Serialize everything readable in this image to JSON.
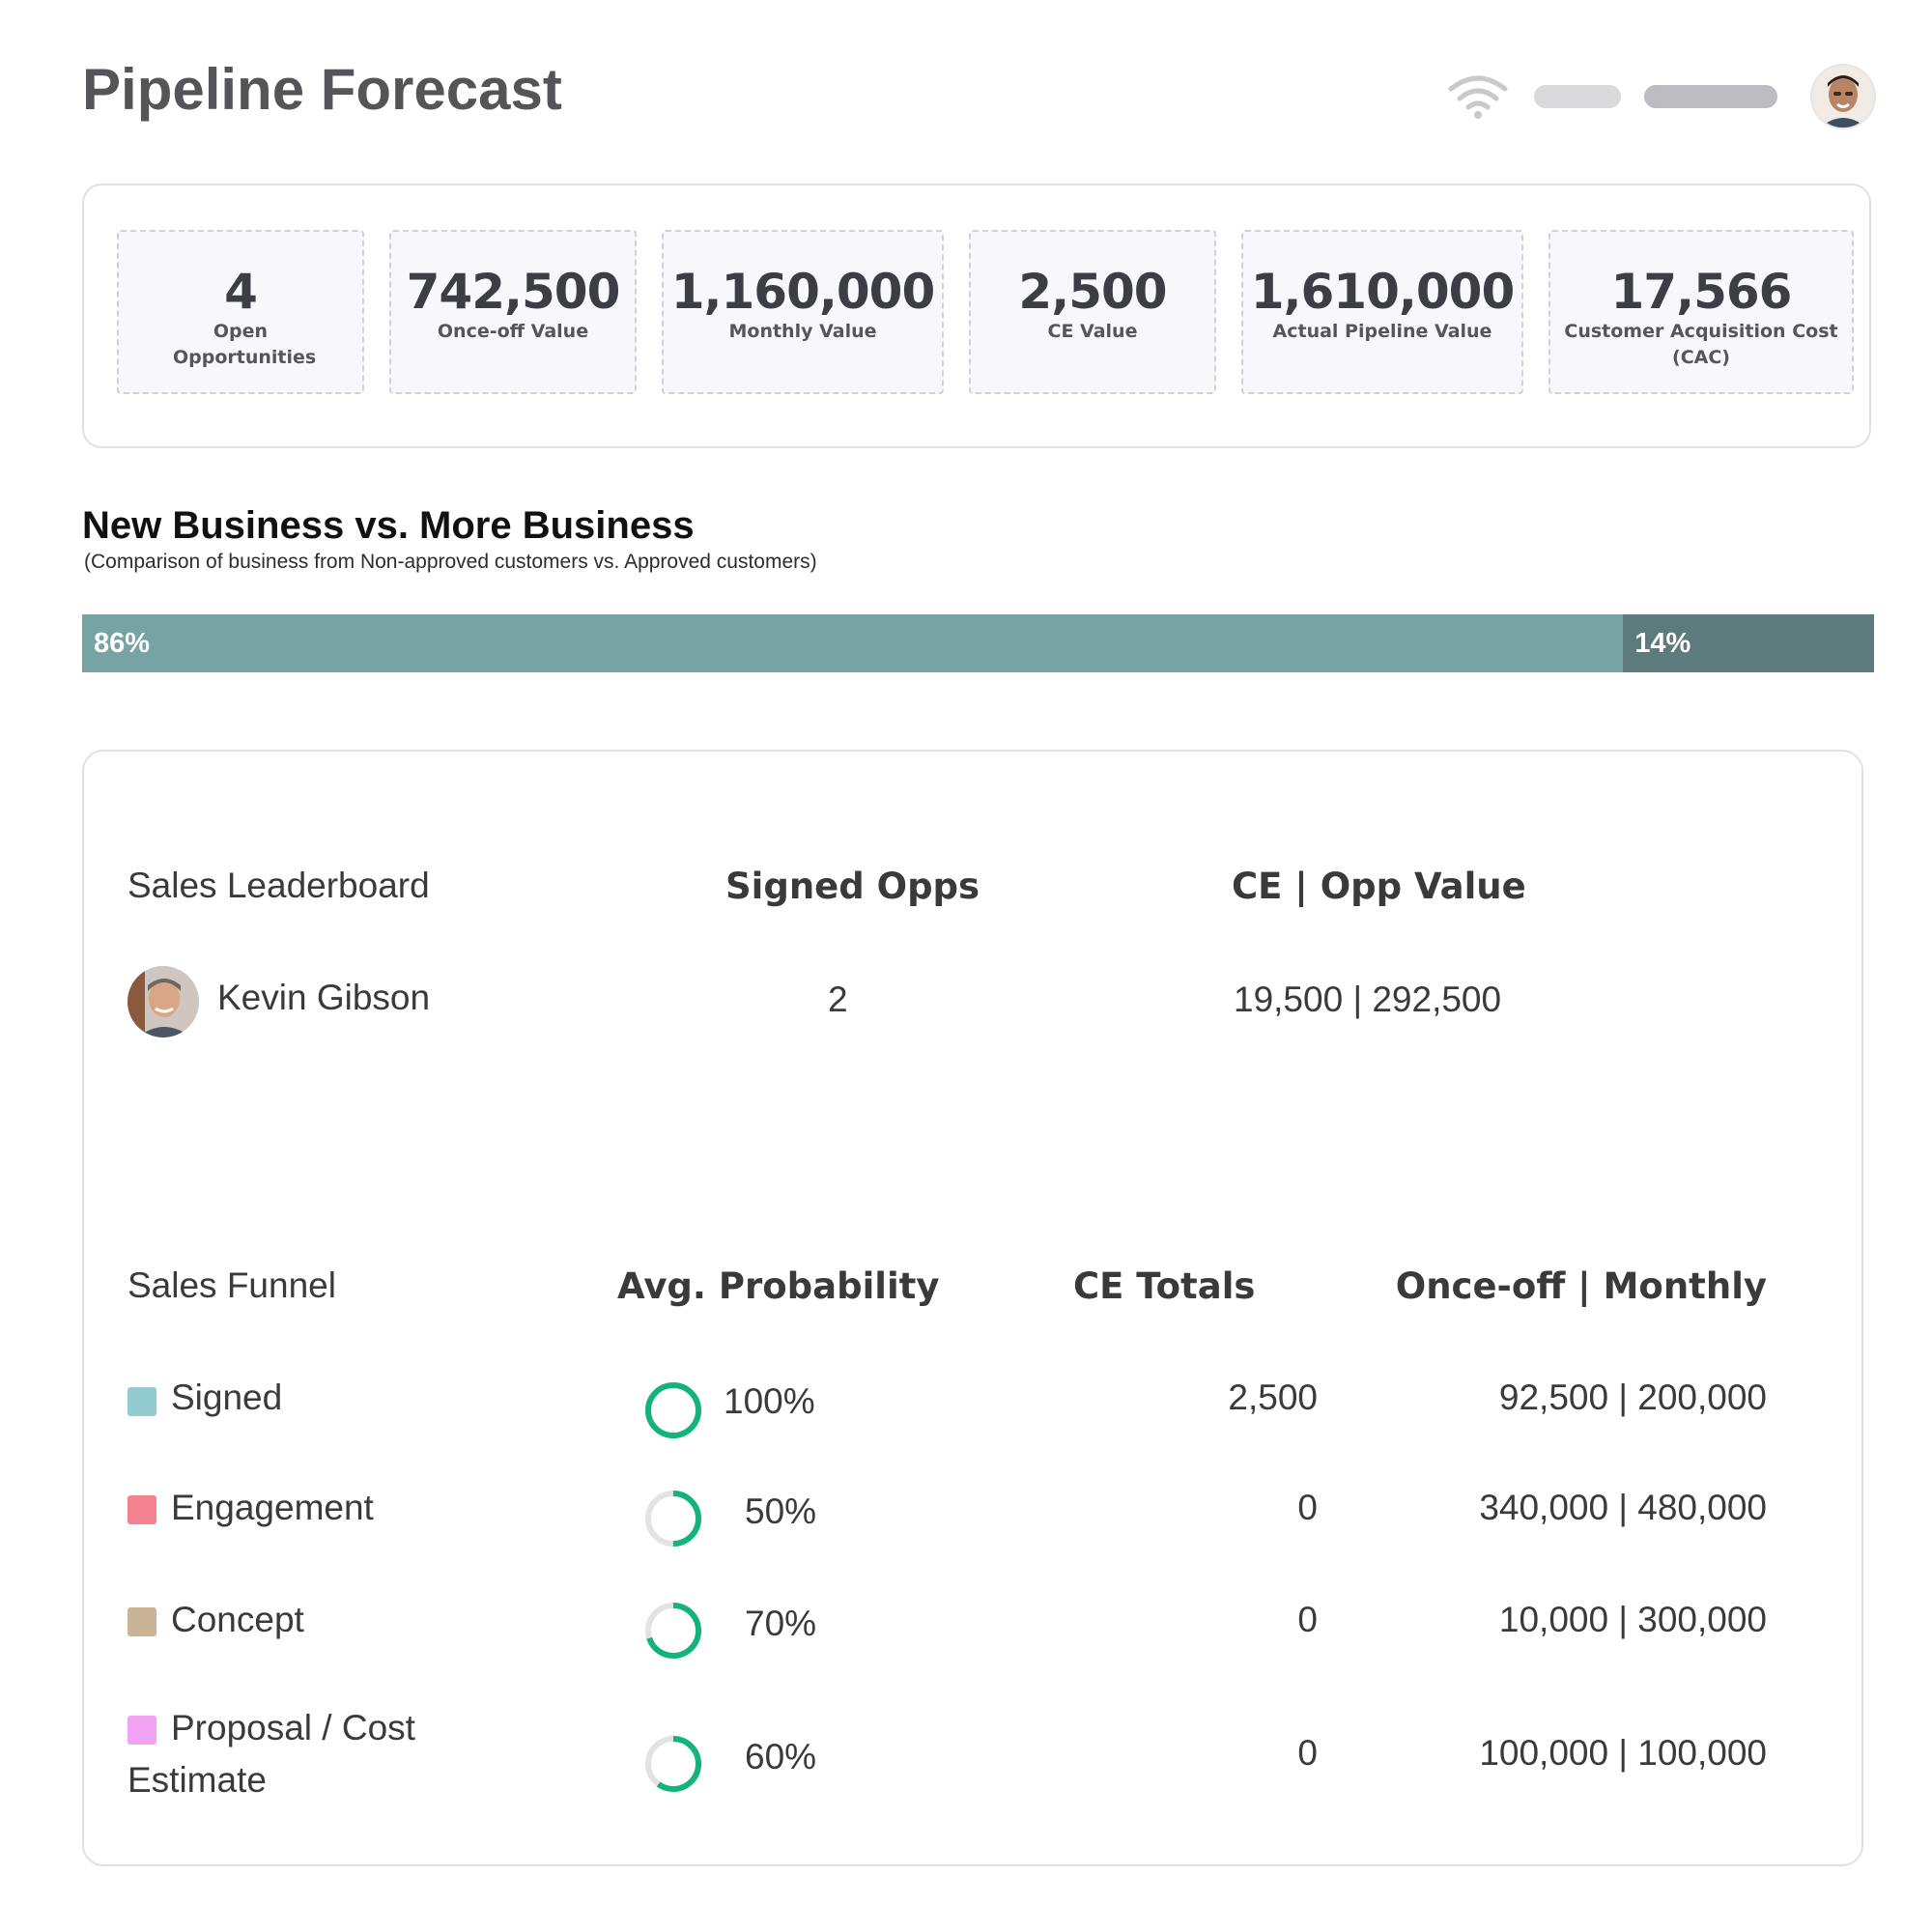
{
  "header": {
    "title": "Pipeline Forecast",
    "icons": {
      "wifi": "wifi-icon",
      "avatar": "user-avatar"
    }
  },
  "kpis": [
    {
      "value": "4",
      "label": "Open Opportunities"
    },
    {
      "value": "742,500",
      "label": "Once-off Value"
    },
    {
      "value": "1,160,000",
      "label": "Monthly Value"
    },
    {
      "value": "2,500",
      "label": "CE Value"
    },
    {
      "value": "1,610,000",
      "label": "Actual Pipeline Value"
    },
    {
      "value": "17,566",
      "label": "Customer Acquisition Cost (CAC)"
    }
  ],
  "business_split": {
    "title": "New Business vs. More Business",
    "subtitle": "(Comparison of business from Non-approved customers vs. Approved customers)",
    "new_business": {
      "label": "86%",
      "fraction": 0.86,
      "color": "#76a4a5"
    },
    "more_business": {
      "label": "14%",
      "fraction": 0.14,
      "color": "#5d7a7c"
    }
  },
  "leaderboard": {
    "title": "Sales Leaderboard",
    "columns": {
      "signed": "Signed Opps",
      "value": "CE | Opp Value"
    },
    "rows": [
      {
        "name": "Kevin Gibson",
        "signed": "2",
        "value": "19,500 | 292,500"
      }
    ]
  },
  "funnel": {
    "title": "Sales Funnel",
    "columns": {
      "probability": "Avg. Probability",
      "ce": "CE Totals",
      "amounts": "Once-off | Monthly"
    },
    "rows": [
      {
        "stage": "Signed",
        "color": "#92cbd0",
        "probability": "100%",
        "fraction": 1.0,
        "ce": "2,500",
        "amounts": "92,500 | 200,000"
      },
      {
        "stage": "Engagement",
        "color": "#f4838f",
        "probability": "50%",
        "fraction": 0.5,
        "ce": "0",
        "amounts": "340,000 | 480,000"
      },
      {
        "stage": "Concept",
        "color": "#c9b496",
        "probability": "70%",
        "fraction": 0.7,
        "ce": "0",
        "amounts": "10,000 | 300,000"
      },
      {
        "stage_line1": "Proposal / Cost",
        "stage_line2": "Estimate",
        "color": "#f0a2f3",
        "probability": "60%",
        "fraction": 0.6,
        "ce": "0",
        "amounts": "100,000 | 100,000"
      }
    ],
    "ring_color": "#13b27f",
    "ring_track": "#e3e3e6"
  }
}
